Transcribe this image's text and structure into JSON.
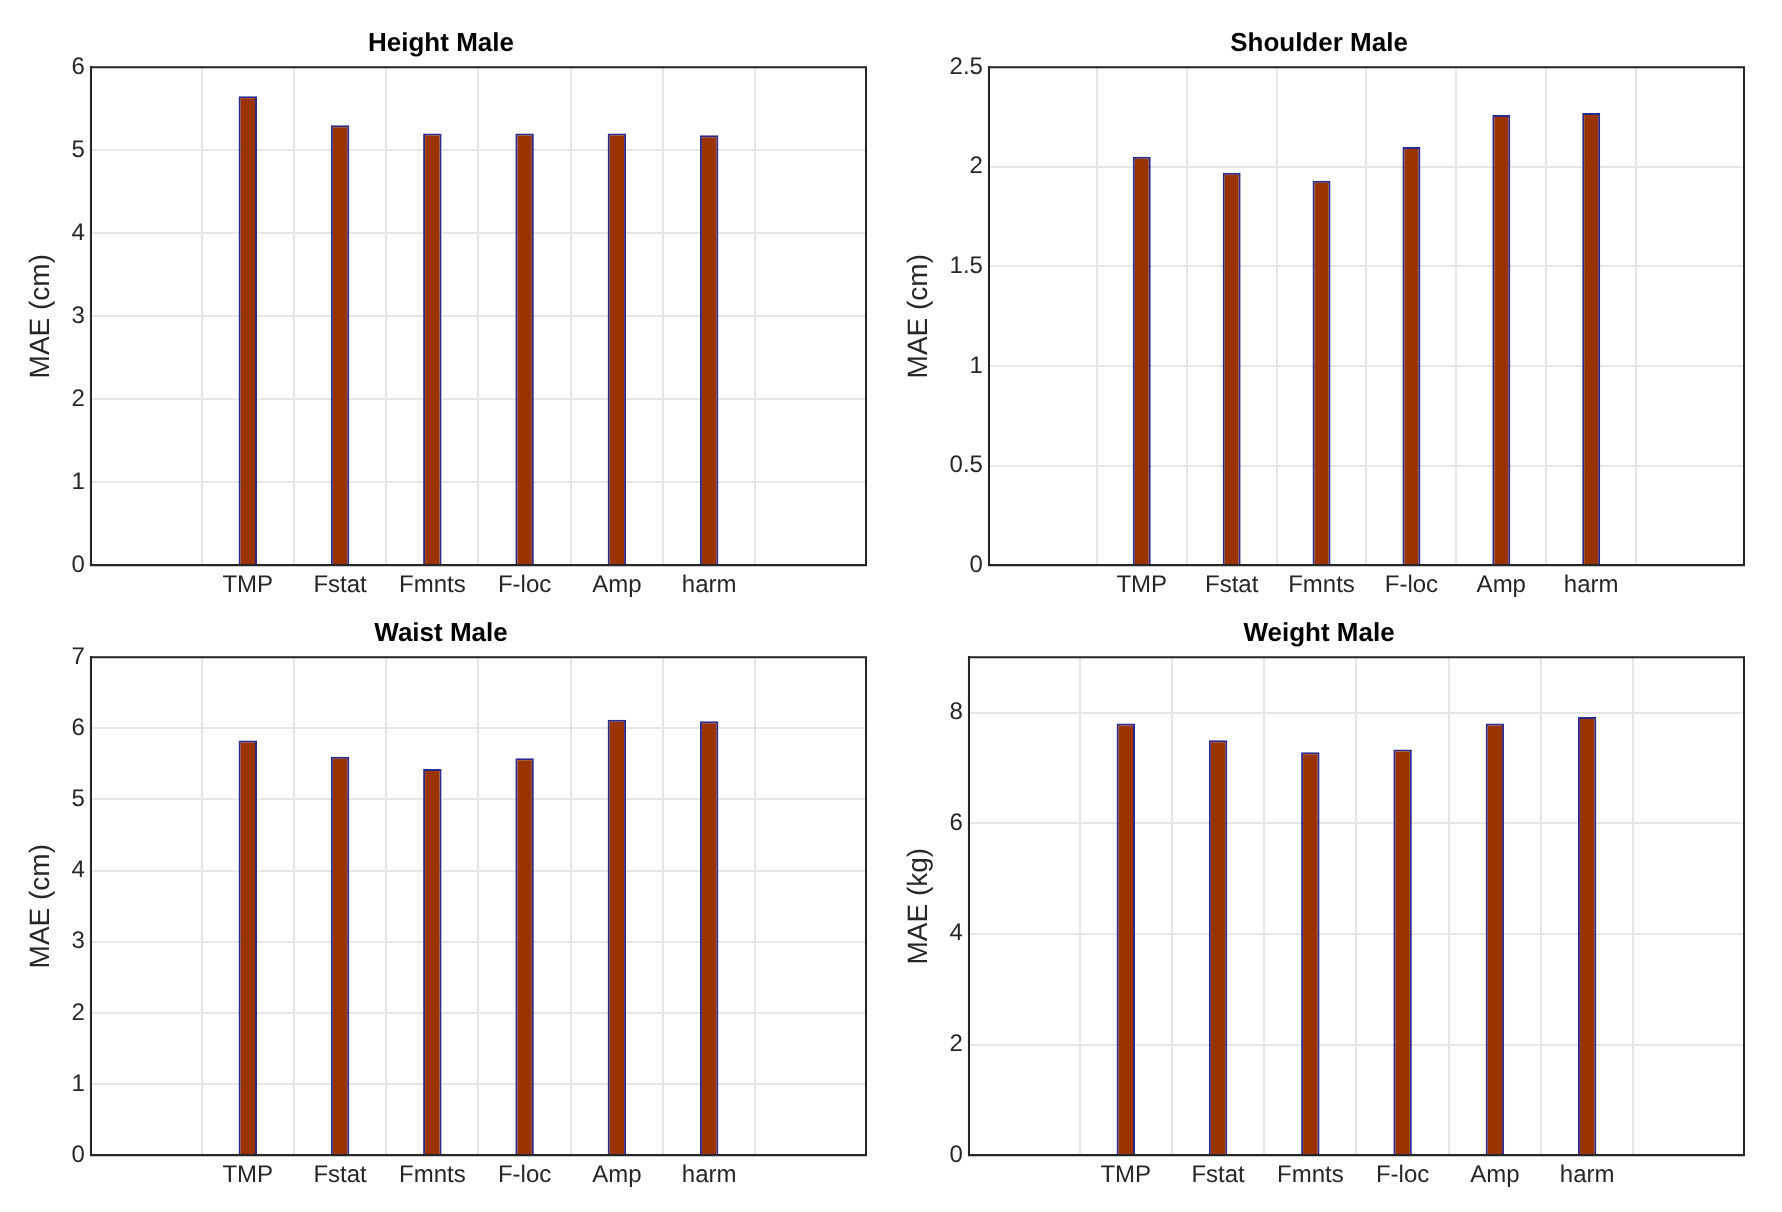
{
  "chart_data": [
    {
      "type": "bar",
      "title": "Height Male",
      "ylabel": "MAE (cm)",
      "categories": [
        "TMP",
        "Fstat",
        "Fmnts",
        "F-loc",
        "Amp",
        "harm"
      ],
      "values": [
        5.65,
        5.3,
        5.2,
        5.2,
        5.2,
        5.18
      ],
      "color": "#993300",
      "ylim": [
        0,
        6
      ],
      "yticks": [
        0,
        1,
        2,
        3,
        4,
        5,
        6
      ],
      "grid": true
    },
    {
      "type": "bar",
      "title": "Shoulder Male",
      "ylabel": "MAE (cm)",
      "categories": [
        "TMP",
        "Fstat",
        "Fmnts",
        "F-loc",
        "Amp",
        "harm"
      ],
      "values": [
        2.05,
        1.97,
        1.93,
        2.1,
        2.26,
        2.27
      ],
      "color": "#993300",
      "ylim": [
        0,
        2.5
      ],
      "yticks": [
        0,
        0.5,
        1,
        1.5,
        2,
        2.5
      ],
      "grid": true
    },
    {
      "type": "bar",
      "title": "Waist Male",
      "ylabel": "MAE (cm)",
      "categories": [
        "TMP",
        "Fstat",
        "Fmnts",
        "F-loc",
        "Amp",
        "harm"
      ],
      "values": [
        5.83,
        5.6,
        5.43,
        5.58,
        6.12,
        6.1
      ],
      "color": "#993300",
      "ylim": [
        0,
        7
      ],
      "yticks": [
        0,
        1,
        2,
        3,
        4,
        5,
        6,
        7
      ],
      "grid": true
    },
    {
      "type": "bar",
      "title": "Weight Male",
      "ylabel": "MAE (kg)",
      "categories": [
        "TMP",
        "Fstat",
        "Fmnts",
        "F-loc",
        "Amp",
        "harm"
      ],
      "values": [
        7.8,
        7.5,
        7.28,
        7.33,
        7.8,
        7.92
      ],
      "color": "#993300",
      "ylim": [
        0,
        9
      ],
      "yticks": [
        0,
        2,
        4,
        6,
        8
      ],
      "grid": true
    }
  ]
}
